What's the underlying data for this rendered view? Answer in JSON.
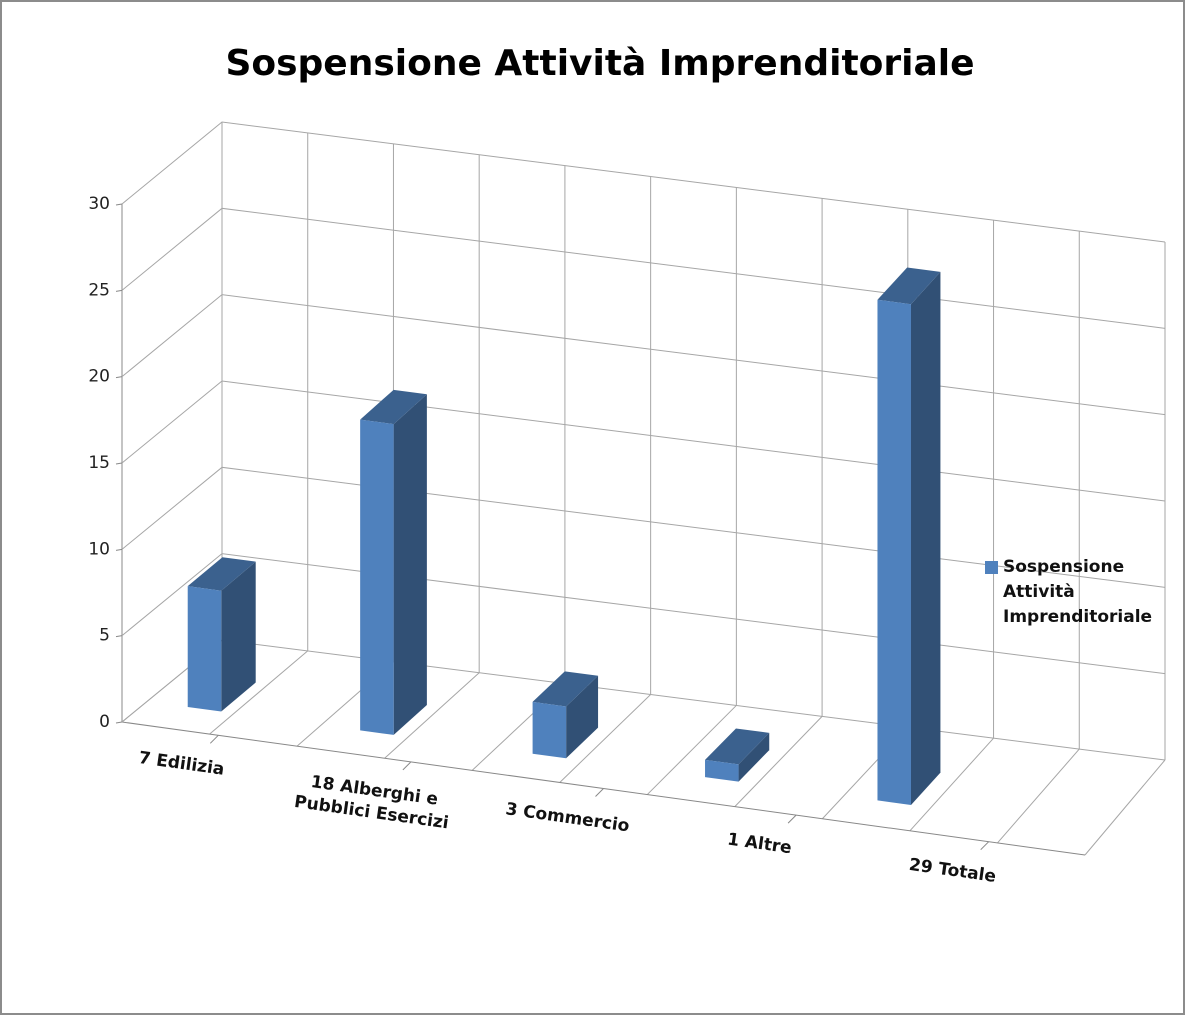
{
  "chart_data": {
    "type": "bar3d",
    "title": "Sospensione Attività Imprenditoriale",
    "categories": [
      "7 Edilizia",
      "18 Alberghi e Pubblici Esercizi",
      "3  Commercio",
      "1  Altre",
      "29 Totale"
    ],
    "series": [
      {
        "name": "Sospensione Attività Imprenditoriale",
        "color": "#4f81bd",
        "values": [
          7,
          18,
          3,
          1,
          29
        ]
      }
    ],
    "ylim": [
      0,
      30
    ],
    "yticks": [
      0,
      5,
      10,
      15,
      20,
      25,
      30
    ],
    "grid": true,
    "legend": "right"
  }
}
